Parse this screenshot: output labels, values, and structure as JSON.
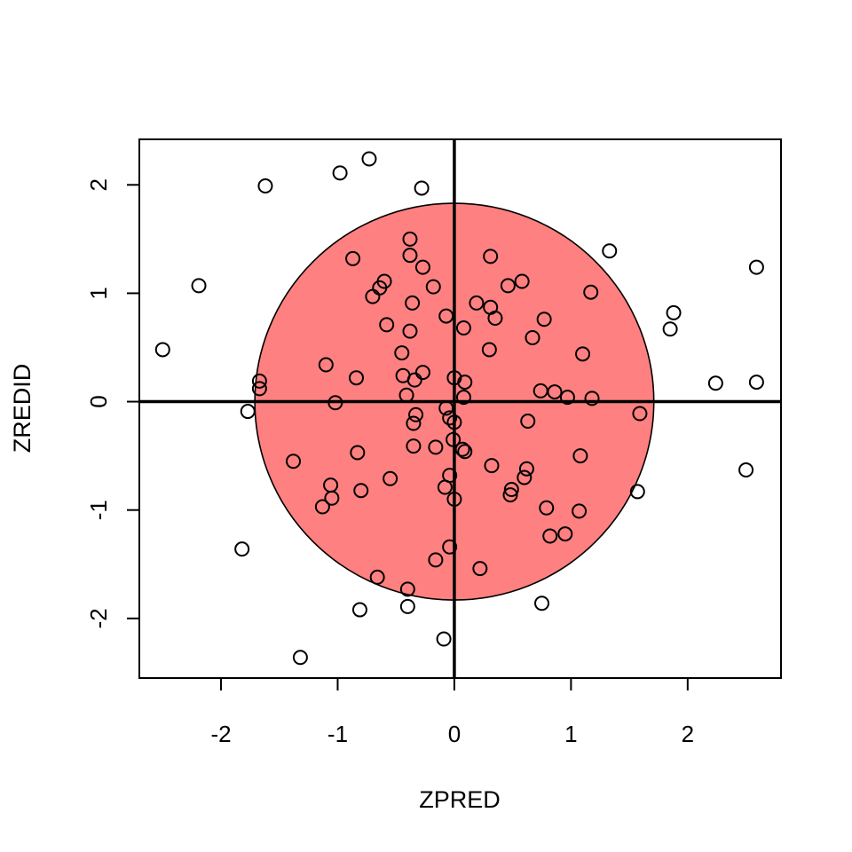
{
  "chart_data": {
    "type": "scatter",
    "title": "",
    "xlabel": "ZPRED",
    "ylabel": "ZREDID",
    "xlim": [
      -2.7,
      2.8
    ],
    "ylim": [
      -2.55,
      2.42
    ],
    "xticks": [
      {
        "value": -2,
        "label": "-2"
      },
      {
        "value": -1,
        "label": "-1"
      },
      {
        "value": 0,
        "label": "0"
      },
      {
        "value": 1,
        "label": "1"
      },
      {
        "value": 2,
        "label": "2"
      }
    ],
    "yticks": [
      {
        "value": -2,
        "label": "-2"
      },
      {
        "value": -1,
        "label": "-1"
      },
      {
        "value": 0,
        "label": "0"
      },
      {
        "value": 1,
        "label": "1"
      },
      {
        "value": 2,
        "label": "2"
      }
    ],
    "reference_lines": {
      "x": 0,
      "y": 0
    },
    "circle": {
      "cx": 0,
      "cy": 0,
      "rx": 1.71,
      "ry": 1.83,
      "fill": "#ff8080",
      "stroke": "#000000"
    },
    "point_color": "#000000",
    "points": [
      [
        -0.73,
        2.24
      ],
      [
        -0.98,
        2.11
      ],
      [
        -1.62,
        1.99
      ],
      [
        -0.28,
        1.97
      ],
      [
        -0.38,
        1.5
      ],
      [
        -0.38,
        1.35
      ],
      [
        -0.87,
        1.32
      ],
      [
        -0.27,
        1.24
      ],
      [
        0.31,
        1.34
      ],
      [
        0.58,
        1.11
      ],
      [
        0.46,
        1.07
      ],
      [
        1.33,
        1.39
      ],
      [
        2.59,
        1.24
      ],
      [
        -2.19,
        1.07
      ],
      [
        -0.6,
        1.11
      ],
      [
        -0.64,
        1.05
      ],
      [
        -0.18,
        1.06
      ],
      [
        -0.7,
        0.97
      ],
      [
        -0.36,
        0.91
      ],
      [
        0.19,
        0.91
      ],
      [
        0.31,
        0.87
      ],
      [
        1.17,
        1.01
      ],
      [
        1.88,
        0.82
      ],
      [
        1.85,
        0.67
      ],
      [
        -0.07,
        0.79
      ],
      [
        0.35,
        0.77
      ],
      [
        0.77,
        0.76
      ],
      [
        -0.58,
        0.71
      ],
      [
        0.08,
        0.68
      ],
      [
        -0.38,
        0.65
      ],
      [
        0.67,
        0.59
      ],
      [
        -2.5,
        0.48
      ],
      [
        -0.45,
        0.45
      ],
      [
        0.3,
        0.48
      ],
      [
        1.1,
        0.44
      ],
      [
        -1.1,
        0.34
      ],
      [
        -0.27,
        0.27
      ],
      [
        -0.44,
        0.24
      ],
      [
        -0.84,
        0.22
      ],
      [
        -0.34,
        0.2
      ],
      [
        0.0,
        0.22
      ],
      [
        0.09,
        0.18
      ],
      [
        -1.67,
        0.19
      ],
      [
        -1.67,
        0.12
      ],
      [
        2.24,
        0.17
      ],
      [
        2.59,
        0.18
      ],
      [
        0.74,
        0.1
      ],
      [
        0.86,
        0.09
      ],
      [
        0.97,
        0.04
      ],
      [
        1.18,
        0.03
      ],
      [
        -0.41,
        0.06
      ],
      [
        0.08,
        0.04
      ],
      [
        -1.02,
        -0.01
      ],
      [
        -0.07,
        -0.06
      ],
      [
        -1.77,
        -0.09
      ],
      [
        -0.33,
        -0.12
      ],
      [
        1.59,
        -0.11
      ],
      [
        -0.04,
        -0.15
      ],
      [
        0.0,
        -0.19
      ],
      [
        0.63,
        -0.18
      ],
      [
        -0.35,
        -0.2
      ],
      [
        -0.01,
        -0.35
      ],
      [
        -0.35,
        -0.41
      ],
      [
        -0.16,
        -0.42
      ],
      [
        0.07,
        -0.44
      ],
      [
        0.09,
        -0.46
      ],
      [
        -0.83,
        -0.47
      ],
      [
        1.08,
        -0.5
      ],
      [
        -1.38,
        -0.55
      ],
      [
        0.32,
        -0.59
      ],
      [
        0.62,
        -0.62
      ],
      [
        -0.04,
        -0.68
      ],
      [
        0.6,
        -0.7
      ],
      [
        -0.55,
        -0.71
      ],
      [
        -1.06,
        -0.77
      ],
      [
        -0.08,
        -0.79
      ],
      [
        0.49,
        -0.81
      ],
      [
        -0.8,
        -0.82
      ],
      [
        0.48,
        -0.86
      ],
      [
        1.57,
        -0.83
      ],
      [
        2.5,
        -0.63
      ],
      [
        -1.05,
        -0.89
      ],
      [
        0.0,
        -0.9
      ],
      [
        -1.13,
        -0.97
      ],
      [
        0.79,
        -0.98
      ],
      [
        1.07,
        -1.01
      ],
      [
        0.95,
        -1.22
      ],
      [
        0.82,
        -1.24
      ],
      [
        -1.82,
        -1.36
      ],
      [
        -0.04,
        -1.34
      ],
      [
        -0.16,
        -1.46
      ],
      [
        0.22,
        -1.54
      ],
      [
        -0.66,
        -1.62
      ],
      [
        -0.4,
        -1.73
      ],
      [
        0.75,
        -1.86
      ],
      [
        -0.4,
        -1.89
      ],
      [
        -0.81,
        -1.92
      ],
      [
        -0.09,
        -2.19
      ],
      [
        -1.32,
        -2.36
      ]
    ]
  }
}
